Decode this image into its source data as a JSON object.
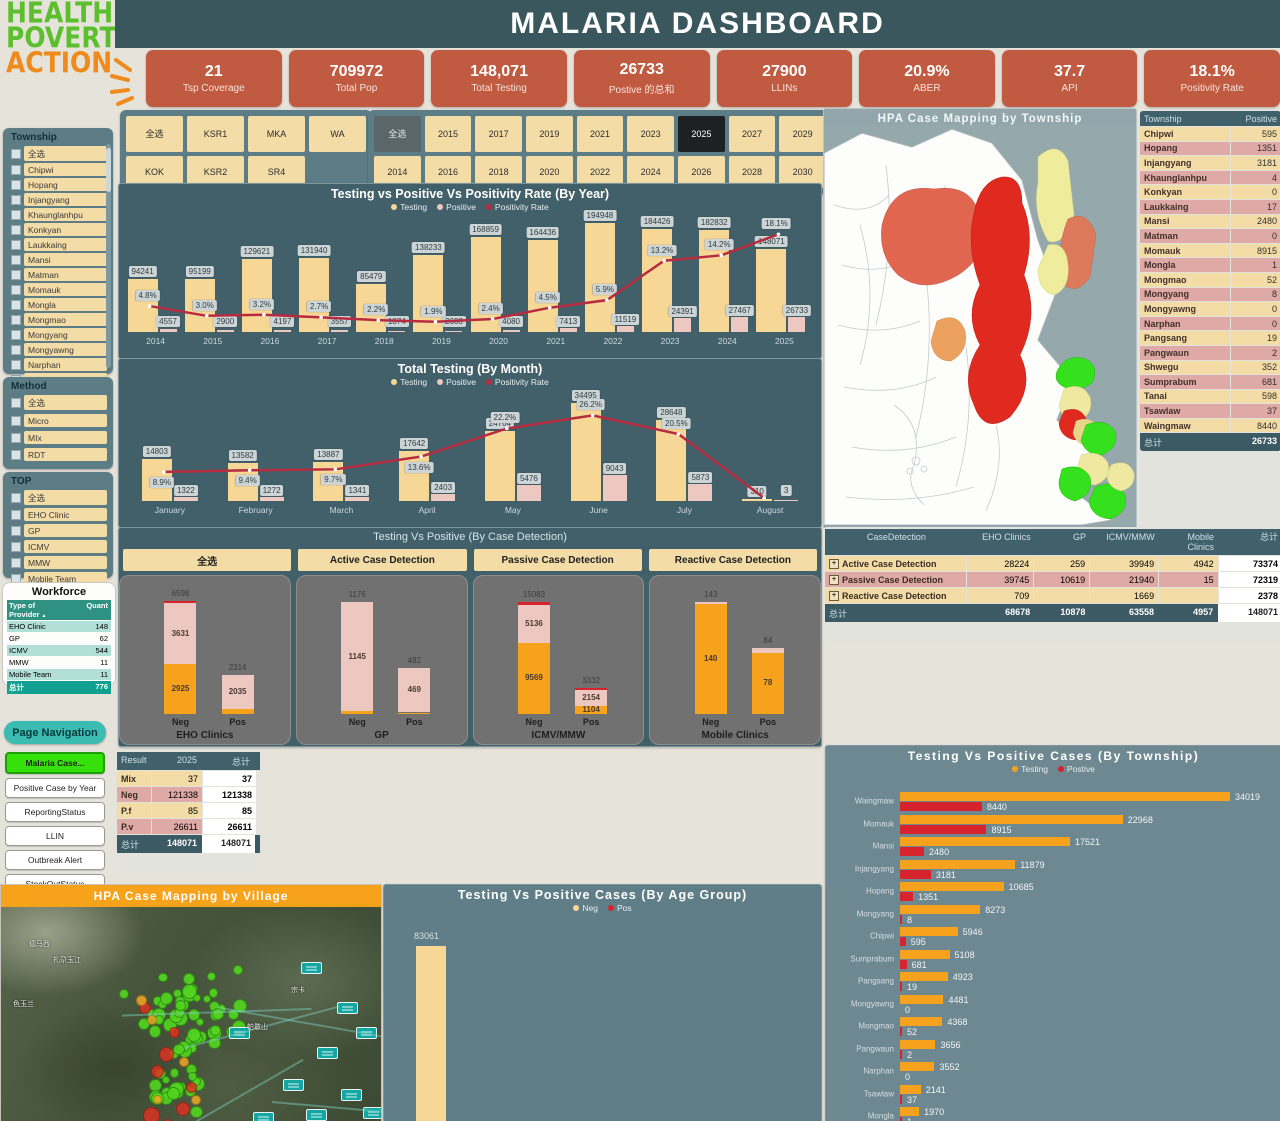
{
  "logo": {
    "lines": [
      "HEALTH",
      "POVERTY",
      "ACTION"
    ]
  },
  "header": {
    "title": "MALARIA DASHBOARD"
  },
  "kpis": [
    {
      "value": "21",
      "label": "Tsp Coverage"
    },
    {
      "value": "709972",
      "label": "Total  Pop"
    },
    {
      "value": "148,071",
      "label": "Total Testing"
    },
    {
      "value": "26733",
      "label": "Postive 的总和"
    },
    {
      "value": "27900",
      "label": "LLINs"
    },
    {
      "value": "20.9%",
      "label": "ABER"
    },
    {
      "value": "37.7",
      "label": "API"
    },
    {
      "value": "18.1%",
      "label": "Positivity Rate"
    }
  ],
  "slicers": {
    "township": {
      "title": "Township",
      "items": [
        "全选",
        "Chipwi",
        "Hopang",
        "Injangyang",
        "Khaunglanhpu",
        "Konkyan",
        "Laukkaing",
        "Mansi",
        "Matman",
        "Momauk",
        "Mongla",
        "Mongmao",
        "Mongyang",
        "Mongyawng",
        "Narphan",
        "Pangsang"
      ]
    },
    "method": {
      "title": "Method",
      "items": [
        "全选",
        "Micro",
        "MIx",
        "RDT"
      ]
    },
    "top": {
      "title": "TOP",
      "items": [
        "全选",
        "EHO Clinic",
        "GP",
        "ICMV",
        "MMW",
        "Mobile Team"
      ]
    },
    "regions": [
      "全选",
      "KSR1",
      "MKA",
      "WA",
      "KOK",
      "KSR2",
      "SR4"
    ],
    "years_row1": [
      "全选",
      "2015",
      "2017",
      "2019",
      "2021",
      "2023",
      "2025",
      "2027",
      "2029"
    ],
    "years_row2": [
      "2014",
      "2016",
      "2018",
      "2020",
      "2022",
      "2024",
      "2026",
      "2028",
      "2030"
    ],
    "year_all": "全选",
    "year_selected": "2025"
  },
  "workforce": {
    "title": "Workforce",
    "columns": [
      "Type of Provider",
      "Quant"
    ],
    "sort_icon": "▲",
    "rows": [
      [
        "EHO Clinic",
        "148"
      ],
      [
        "GP",
        "62"
      ],
      [
        "ICMV",
        "544"
      ],
      [
        "MMW",
        "11"
      ],
      [
        "Mobile Team",
        "11"
      ]
    ],
    "total_label": "总计",
    "total_value": "776"
  },
  "nav": {
    "title": "Page Navigation",
    "active": "Malaria Case...",
    "items": [
      "Malaria Case...",
      "Positive Case by Year",
      "ReportingStatus",
      "LLIN",
      "Outbreak Alert",
      "StockOutStatus"
    ]
  },
  "township_map": {
    "title": "HPA Case Mapping by Township"
  },
  "village_map": {
    "title": "HPA Case Mapping by Village",
    "place_labels": [
      "德马西",
      "扎尕玉江",
      "色玉兰",
      "宗卡",
      "帕敢山"
    ]
  },
  "township_table": {
    "columns": [
      "Township",
      "Positive"
    ],
    "rows": [
      [
        "Chipwi",
        "595"
      ],
      [
        "Hopang",
        "1351"
      ],
      [
        "Injangyang",
        "3181"
      ],
      [
        "Khaunglanhpu",
        "4"
      ],
      [
        "Konkyan",
        "0"
      ],
      [
        "Laukkaing",
        "17"
      ],
      [
        "Mansi",
        "2480"
      ],
      [
        "Matman",
        "0"
      ],
      [
        "Momauk",
        "8915"
      ],
      [
        "Mongla",
        "1"
      ],
      [
        "Mongmao",
        "52"
      ],
      [
        "Mongyang",
        "8"
      ],
      [
        "Mongyawng",
        "0"
      ],
      [
        "Narphan",
        "0"
      ],
      [
        "Pangsang",
        "19"
      ],
      [
        "Pangwaun",
        "2"
      ],
      [
        "Shwegu",
        "352"
      ],
      [
        "Sumprabum",
        "681"
      ],
      [
        "Tanai",
        "598"
      ],
      [
        "Tsawlaw",
        "37"
      ],
      [
        "Waingmaw",
        "8440"
      ]
    ],
    "total_label": "总计",
    "total_value": "26733"
  },
  "detection_table": {
    "columns": [
      "CaseDetection",
      "EHO Clinics",
      "GP",
      "ICMV/MMW",
      "Mobile Clinics",
      "总计"
    ],
    "rows": [
      {
        "label": "Active Case Detection",
        "values": [
          "28224",
          "259",
          "39949",
          "4942"
        ],
        "total": "73374",
        "tone": "tan"
      },
      {
        "label": "Passive Case Detection",
        "values": [
          "39745",
          "10619",
          "21940",
          "15"
        ],
        "total": "72319",
        "tone": "pink"
      },
      {
        "label": "Reactive Case Detection",
        "values": [
          "709",
          "",
          "1669",
          ""
        ],
        "total": "2378",
        "tone": "tan"
      }
    ],
    "total_label": "总计",
    "totals": [
      "68678",
      "10878",
      "63558",
      "4957"
    ],
    "grand_total": "148071"
  },
  "result_table": {
    "columns": [
      "Result",
      "2025",
      "总计"
    ],
    "rows": [
      {
        "label": "Mix",
        "value": "37",
        "total": "37",
        "tone": "tan"
      },
      {
        "label": "Neg",
        "value": "121338",
        "total": "121338",
        "tone": "pink"
      },
      {
        "label": "P.f",
        "value": "85",
        "total": "85",
        "tone": "tan"
      },
      {
        "label": "P.v",
        "value": "26611",
        "total": "26611",
        "tone": "pink"
      }
    ],
    "total_label": "总计",
    "total_value": "148071",
    "grand_total": "148071"
  },
  "colors": {
    "testing_yellow": "#f7d795",
    "positive_pink": "#ecc8c1",
    "rate_red": "#b62b3f",
    "orange": "#f6a21d",
    "red": "#d7232e",
    "kpi": "#c05b42",
    "accent_teal": "#3a575e"
  },
  "chart_data": [
    {
      "id": "by_year",
      "type": "bar+line",
      "title": "Testing vs Positive Vs Positivity Rate (By Year)",
      "legend": [
        "Testing",
        "Positive",
        "Positivity Rate"
      ],
      "categories": [
        "2014",
        "2015",
        "2016",
        "2017",
        "2018",
        "2019",
        "2020",
        "2021",
        "2022",
        "2023",
        "2024",
        "2025"
      ],
      "series": [
        {
          "name": "Testing",
          "values": [
            94241,
            95199,
            129621,
            131940,
            85479,
            138233,
            168859,
            164436,
            194948,
            184426,
            182832,
            148071
          ]
        },
        {
          "name": "Positive",
          "values": [
            4557,
            2900,
            4197,
            3557,
            1874,
            2608,
            4080,
            7413,
            11519,
            24391,
            27467,
            26733
          ]
        },
        {
          "name": "Positivity Rate",
          "values": [
            4.8,
            3.0,
            3.2,
            2.7,
            2.2,
            1.9,
            2.4,
            4.5,
            5.9,
            13.2,
            14.2,
            18.1
          ]
        }
      ],
      "ylim": [
        0,
        200000
      ],
      "rate_lim": [
        0,
        20
      ],
      "grid": false,
      "legend_position": "top"
    },
    {
      "id": "by_month",
      "type": "bar+line",
      "title": "Total Testing (By Month)",
      "legend": [
        "Testing",
        "Positive",
        "Positivity Rate"
      ],
      "categories": [
        "January",
        "February",
        "March",
        "April",
        "May",
        "June",
        "July",
        "August"
      ],
      "series": [
        {
          "name": "Testing",
          "values": [
            14803,
            13582,
            13887,
            17642,
            24704,
            34495,
            28648,
            310
          ]
        },
        {
          "name": "Positive",
          "values": [
            1322,
            1272,
            1341,
            2403,
            5476,
            9043,
            5873,
            3
          ]
        },
        {
          "name": "Positivity Rate",
          "values": [
            8.9,
            9.4,
            9.7,
            13.6,
            22.2,
            26.2,
            20.5,
            null
          ]
        }
      ],
      "ylim": [
        0,
        36000
      ],
      "rate_lim": [
        0,
        30
      ],
      "grid": false,
      "legend_position": "top"
    },
    {
      "id": "by_detection",
      "type": "stacked-bar-panels",
      "title": "Testing Vs Positive (By Case Detection)",
      "buttons": [
        "全选",
        "Active Case Detection",
        "Passive Case Detection",
        "Reactive Case Detection"
      ],
      "panels": [
        {
          "name": "EHO Clinics",
          "max": 6598,
          "bars": [
            {
              "cat": "Neg",
              "total": "6598",
              "segments": [
                {
                  "v": 2925,
                  "color": "orange",
                  "label": "2925"
                },
                {
                  "v": 3631,
                  "color": "pink",
                  "label": "3631"
                },
                {
                  "v": 42,
                  "color": "red",
                  "label": null
                }
              ]
            },
            {
              "cat": "Pos",
              "total": "2314",
              "segments": [
                {
                  "v": 279,
                  "color": "orange",
                  "label": null
                },
                {
                  "v": 2035,
                  "color": "pink",
                  "label": "2035"
                }
              ]
            }
          ]
        },
        {
          "name": "GP",
          "max": 1176,
          "bars": [
            {
              "cat": "Neg",
              "total": "1176",
              "segments": [
                {
                  "v": 31,
                  "color": "orange",
                  "label": null
                },
                {
                  "v": 1145,
                  "color": "pink",
                  "label": "1145"
                }
              ]
            },
            {
              "cat": "Pos",
              "total": "482",
              "segments": [
                {
                  "v": 13,
                  "color": "orange",
                  "label": null
                },
                {
                  "v": 469,
                  "color": "pink",
                  "label": "469"
                }
              ]
            }
          ]
        },
        {
          "name": "ICMV/MMW",
          "max": 15083,
          "bars": [
            {
              "cat": "Neg",
              "total": "15083",
              "segments": [
                {
                  "v": 9569,
                  "color": "orange",
                  "label": "9569"
                },
                {
                  "v": 5136,
                  "color": "pink",
                  "label": "5136"
                },
                {
                  "v": 378,
                  "color": "red",
                  "label": null
                }
              ]
            },
            {
              "cat": "Pos",
              "total": "3332",
              "segments": [
                {
                  "v": 1104,
                  "color": "orange",
                  "label": "1104"
                },
                {
                  "v": 2154,
                  "color": "pink",
                  "label": "2154"
                },
                {
                  "v": 74,
                  "color": "red",
                  "label": null
                }
              ]
            }
          ]
        },
        {
          "name": "Mobile Clinics",
          "max": 143,
          "bars": [
            {
              "cat": "Neg",
              "total": "143",
              "segments": [
                {
                  "v": 140,
                  "color": "orange",
                  "label": "140"
                },
                {
                  "v": 3,
                  "color": "pink",
                  "label": null
                }
              ]
            },
            {
              "cat": "Pos",
              "total": "84",
              "segments": [
                {
                  "v": 78,
                  "color": "orange",
                  "label": "78"
                },
                {
                  "v": 6,
                  "color": "pink",
                  "label": null
                }
              ]
            }
          ]
        }
      ]
    },
    {
      "id": "by_township",
      "type": "hbar-pair",
      "title": "Testing Vs Positive Cases (By Township)",
      "legend": [
        "Testing",
        "Postive"
      ],
      "rows": [
        {
          "name": "Waingmaw",
          "testing": 34019,
          "positive": 8440
        },
        {
          "name": "Momauk",
          "testing": 22968,
          "positive": 8915
        },
        {
          "name": "Mansi",
          "testing": 17521,
          "positive": 2480
        },
        {
          "name": "Injangyang",
          "testing": 11879,
          "positive": 3181
        },
        {
          "name": "Hopang",
          "testing": 10685,
          "positive": 1351
        },
        {
          "name": "Mongyang",
          "testing": 8273,
          "positive": 8
        },
        {
          "name": "Chipwi",
          "testing": 5946,
          "positive": 595
        },
        {
          "name": "Sumprabum",
          "testing": 5108,
          "positive": 681
        },
        {
          "name": "Pangsang",
          "testing": 4923,
          "positive": 19
        },
        {
          "name": "Mongyawng",
          "testing": 4481,
          "positive": 0
        },
        {
          "name": "Mongmao",
          "testing": 4368,
          "positive": 52
        },
        {
          "name": "Pangwaun",
          "testing": 3656,
          "positive": 2
        },
        {
          "name": "Narphan",
          "testing": 3552,
          "positive": 0
        },
        {
          "name": "Tsawlaw",
          "testing": 2141,
          "positive": 37
        },
        {
          "name": "Mongla",
          "testing": 1970,
          "positive": 1
        }
      ],
      "xlim": [
        0,
        34019
      ]
    },
    {
      "id": "by_age",
      "type": "bar",
      "title": "Testing Vs Positive Cases (By Age Group)",
      "legend": [
        "Neg",
        "Pos"
      ],
      "bars": [
        {
          "label": "",
          "neg": 83061
        }
      ],
      "ylim": [
        0,
        90000
      ]
    }
  ]
}
